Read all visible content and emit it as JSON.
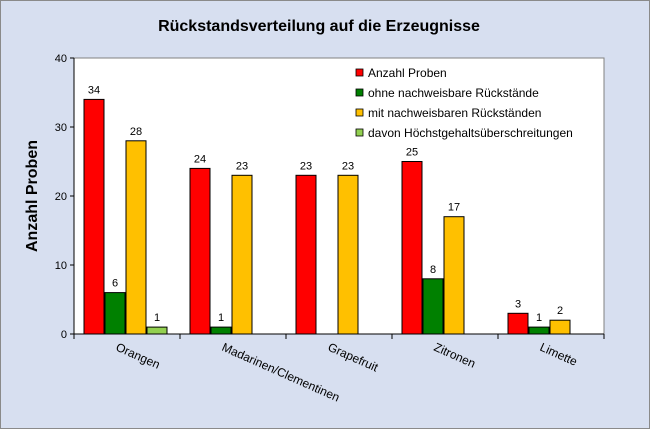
{
  "chart_data": {
    "type": "bar",
    "title": "Rückstandsverteilung  auf die Erzeugnisse",
    "xlabel": "",
    "ylabel": "Anzahl Proben",
    "ylim": [
      0,
      40
    ],
    "yticks": [
      0,
      10,
      20,
      30,
      40
    ],
    "grid": false,
    "legend_position": "top-right",
    "categories": [
      "Orangen",
      "Madarinen/Clementinen",
      "Grapefruit",
      "Zitronen",
      "Limette"
    ],
    "series": [
      {
        "name": "Anzahl Proben",
        "color": "#ff0000",
        "values": [
          34,
          24,
          23,
          25,
          3
        ]
      },
      {
        "name": "ohne nachweisbare Rückstände",
        "color": "#008000",
        "values": [
          6,
          1,
          null,
          8,
          1
        ]
      },
      {
        "name": "mit nachweisbaren Rückständen",
        "color": "#ffc000",
        "values": [
          28,
          23,
          23,
          17,
          2
        ]
      },
      {
        "name": "davon Höchstgehaltsüberschreitungen",
        "color": "#92d050",
        "values": [
          1,
          null,
          null,
          null,
          null
        ]
      }
    ]
  }
}
